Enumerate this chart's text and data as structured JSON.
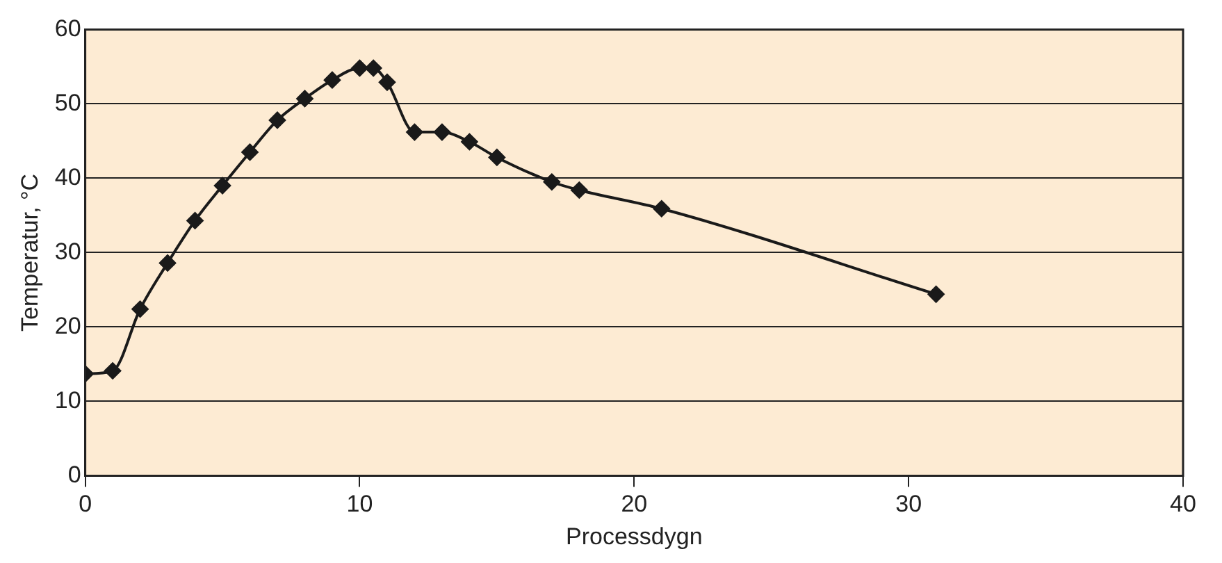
{
  "chart_data": {
    "type": "line",
    "xlabel": "Processdygn",
    "ylabel": "Temperatur, °C",
    "x": [
      0,
      1,
      2,
      3,
      4,
      5,
      6,
      7,
      8,
      9,
      10,
      10.5,
      11,
      12,
      13,
      14,
      15,
      17,
      18,
      21,
      31
    ],
    "series": [
      {
        "color": "#1a1a1a",
        "values": [
          13.7,
          14.1,
          22.4,
          28.6,
          34.3,
          39.0,
          43.5,
          47.8,
          50.7,
          53.2,
          54.8,
          54.8,
          52.9,
          46.2,
          46.2,
          44.9,
          42.8,
          39.5,
          38.4,
          35.9,
          24.4
        ]
      }
    ],
    "xlim": [
      0,
      40
    ],
    "xticks": [
      0,
      10,
      20,
      30,
      40
    ],
    "ylim": [
      0,
      60
    ],
    "yticks": [
      0,
      10,
      20,
      30,
      40,
      50,
      60
    ],
    "grid": "y",
    "legend": false,
    "marker": "diamond",
    "line_style": "solid"
  }
}
